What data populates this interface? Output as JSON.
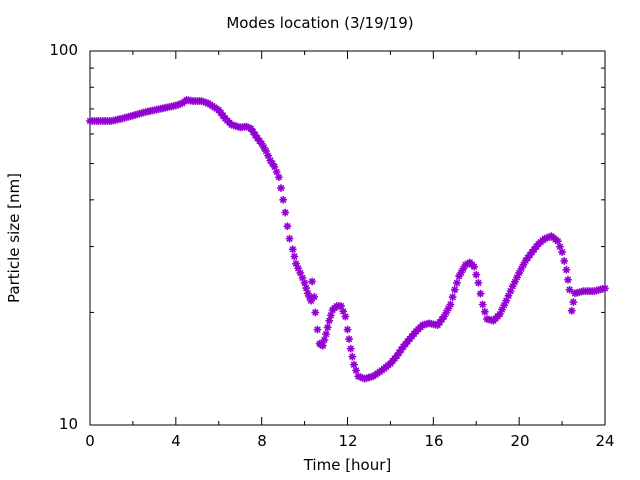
{
  "chart_data": {
    "type": "scatter",
    "title": "Modes location (3/19/19)",
    "xlabel": "Time [hour]",
    "ylabel": "Particle size [nm]",
    "xlim": [
      0,
      24
    ],
    "ylim": [
      10,
      100
    ],
    "yscale": "log",
    "x_ticks": [
      "0",
      "4",
      "8",
      "12",
      "16",
      "20",
      "24"
    ],
    "y_ticks": [
      "10",
      "100"
    ],
    "grid": false,
    "marker": "asterisk",
    "color": "#9400d3",
    "series": [
      {
        "points": [
          [
            0.0,
            65.0
          ],
          [
            0.3,
            65.0
          ],
          [
            0.6,
            65.0
          ],
          [
            1.0,
            65.0
          ],
          [
            1.5,
            66.0
          ],
          [
            2.0,
            67.2
          ],
          [
            2.5,
            68.5
          ],
          [
            3.0,
            69.5
          ],
          [
            3.5,
            70.5
          ],
          [
            4.0,
            71.5
          ],
          [
            4.3,
            72.5
          ],
          [
            4.5,
            74.0
          ],
          [
            4.8,
            73.5
          ],
          [
            5.2,
            73.5
          ],
          [
            5.5,
            72.5
          ],
          [
            6.0,
            69.5
          ],
          [
            6.3,
            66.0
          ],
          [
            6.6,
            63.5
          ],
          [
            7.0,
            62.5
          ],
          [
            7.3,
            62.8
          ],
          [
            7.5,
            62.0
          ],
          [
            7.8,
            58.5
          ],
          [
            8.0,
            56.5
          ],
          [
            8.2,
            54.0
          ],
          [
            8.4,
            51.0
          ],
          [
            8.6,
            49.0
          ],
          [
            8.8,
            46.0
          ],
          [
            8.9,
            43.0
          ],
          [
            9.0,
            40.0
          ],
          [
            9.1,
            37.0
          ],
          [
            9.2,
            34.0
          ],
          [
            9.3,
            31.5
          ],
          [
            9.45,
            29.5
          ],
          [
            9.6,
            27.0
          ],
          [
            9.8,
            25.5
          ],
          [
            10.0,
            24.0
          ],
          [
            10.15,
            22.5
          ],
          [
            10.3,
            21.5
          ],
          [
            10.45,
            22.0
          ],
          [
            10.35,
            24.2
          ],
          [
            10.5,
            20.0
          ],
          [
            10.6,
            18.0
          ],
          [
            10.7,
            16.5
          ],
          [
            10.85,
            16.3
          ],
          [
            11.0,
            17.5
          ],
          [
            11.15,
            19.0
          ],
          [
            11.3,
            20.3
          ],
          [
            11.5,
            20.8
          ],
          [
            11.7,
            20.8
          ],
          [
            11.9,
            19.5
          ],
          [
            12.0,
            18.0
          ],
          [
            12.15,
            16.0
          ],
          [
            12.3,
            14.5
          ],
          [
            12.5,
            13.5
          ],
          [
            12.8,
            13.3
          ],
          [
            13.2,
            13.5
          ],
          [
            13.6,
            14.0
          ],
          [
            14.0,
            14.6
          ],
          [
            14.3,
            15.3
          ],
          [
            14.6,
            16.2
          ],
          [
            14.9,
            17.0
          ],
          [
            15.2,
            17.8
          ],
          [
            15.5,
            18.5
          ],
          [
            15.8,
            18.7
          ],
          [
            16.2,
            18.5
          ],
          [
            16.5,
            19.5
          ],
          [
            16.8,
            21.0
          ],
          [
            17.0,
            23.0
          ],
          [
            17.2,
            25.0
          ],
          [
            17.5,
            26.8
          ],
          [
            17.7,
            27.2
          ],
          [
            17.9,
            26.5
          ],
          [
            18.1,
            24.0
          ],
          [
            18.3,
            21.0
          ],
          [
            18.5,
            19.2
          ],
          [
            18.8,
            19.0
          ],
          [
            19.1,
            19.8
          ],
          [
            19.4,
            21.5
          ],
          [
            19.7,
            23.5
          ],
          [
            20.0,
            25.5
          ],
          [
            20.3,
            27.5
          ],
          [
            20.6,
            29.0
          ],
          [
            20.9,
            30.5
          ],
          [
            21.2,
            31.5
          ],
          [
            21.5,
            32.0
          ],
          [
            21.8,
            31.0
          ],
          [
            22.0,
            29.0
          ],
          [
            22.2,
            26.0
          ],
          [
            22.35,
            23.0
          ],
          [
            22.45,
            20.2
          ],
          [
            22.6,
            22.5
          ],
          [
            23.0,
            22.8
          ],
          [
            23.5,
            22.8
          ],
          [
            24.0,
            23.2
          ]
        ]
      }
    ]
  }
}
